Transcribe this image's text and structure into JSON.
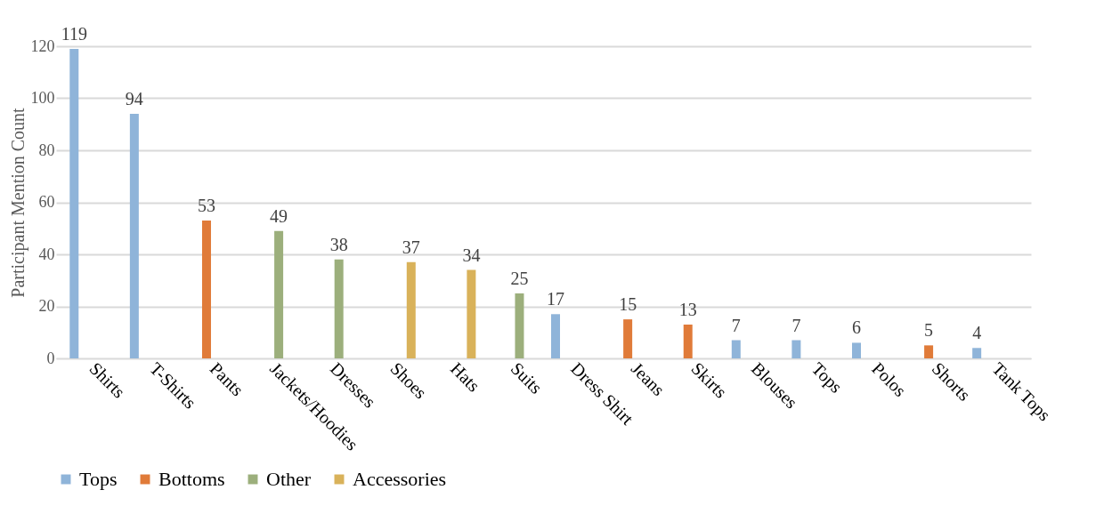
{
  "chart_data": {
    "type": "bar",
    "ylabel": "Participant Mention Count",
    "categories": [
      "Shirts",
      "T-Shirts",
      "Pants",
      "Jackets/Hoodies",
      "Dresses",
      "Shoes",
      "Hats",
      "Suits",
      "Dress Shirt",
      "Jeans",
      "Skirts",
      "Blouses",
      "Tops",
      "Polos",
      "Shorts",
      "Tank Tops"
    ],
    "series": [
      {
        "name": "Tops",
        "color": "#8fb4d9",
        "values": [
          119,
          94,
          null,
          null,
          null,
          null,
          null,
          null,
          17,
          null,
          null,
          7,
          7,
          6,
          null,
          4
        ]
      },
      {
        "name": "Bottoms",
        "color": "#e07b39",
        "values": [
          null,
          null,
          53,
          null,
          null,
          null,
          null,
          null,
          null,
          15,
          13,
          null,
          null,
          null,
          5,
          null
        ]
      },
      {
        "name": "Other",
        "color": "#9caf7c",
        "values": [
          null,
          null,
          null,
          49,
          38,
          null,
          null,
          25,
          null,
          null,
          null,
          null,
          null,
          null,
          null,
          null
        ]
      },
      {
        "name": "Accessories",
        "color": "#d9b25a",
        "values": [
          null,
          null,
          null,
          null,
          null,
          37,
          34,
          null,
          null,
          null,
          null,
          null,
          null,
          null,
          null,
          null
        ]
      }
    ],
    "ylim": [
      0,
      120
    ],
    "yticks": [
      0,
      20,
      40,
      60,
      80,
      100,
      120
    ],
    "grid": "y",
    "legend": "bottom",
    "data_labels": true
  }
}
